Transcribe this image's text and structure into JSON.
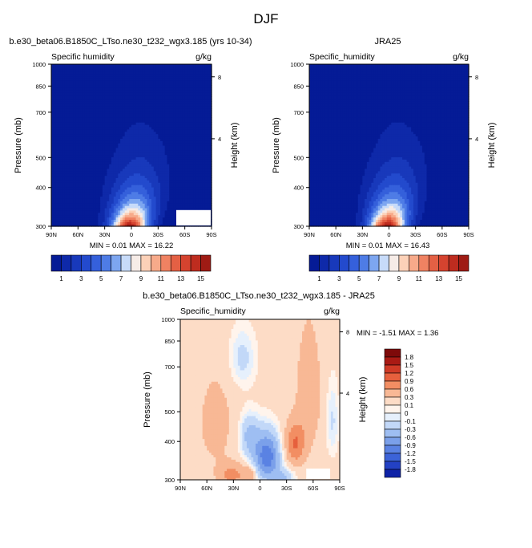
{
  "page_title": "DJF",
  "colors": {
    "positive_ramp": [
      "#FFF4EC",
      "#FDDCC6",
      "#F8B895",
      "#F28E63",
      "#E6603D",
      "#CF3A26",
      "#A91A14",
      "#7E0A0A"
    ],
    "negative_ramp": [
      "#E6F0FC",
      "#C2D8F8",
      "#9EBEF2",
      "#7BA0EA",
      "#5A82E3",
      "#3C63D8",
      "#2341C4",
      "#0E22A7",
      "#00108C"
    ],
    "missing": "#FFFFFF"
  },
  "chart_data": [
    {
      "type": "heatmap",
      "panel": "model",
      "title": "b.e30_beta06.B1850C_LTso.ne30_t232_wgx3.185 (yrs 10-34)",
      "variable_label": "Specific humidity",
      "units": "g/kg",
      "xlabel": "",
      "ylabel": "Pressure (mb)",
      "right_ylabel": "Height (km)",
      "x_ticks": [
        "90N",
        "60N",
        "30N",
        "0",
        "30S",
        "60S",
        "90S"
      ],
      "y_ticks": [
        1000,
        850,
        700,
        500,
        400,
        300
      ],
      "height_ticks": [
        4,
        8
      ],
      "xlim": [
        90,
        -90
      ],
      "ylim": [
        1000,
        300
      ],
      "stats": "MIN =  0.01  MAX =  16.22",
      "max_value": 16.22,
      "contour_levels": [
        1,
        2,
        3,
        4,
        5,
        6,
        7,
        8,
        9,
        10,
        11,
        12,
        13,
        14,
        15
      ],
      "colorbar_labels": [
        "1",
        "3",
        "5",
        "7",
        "9",
        "11",
        "13",
        "15"
      ]
    },
    {
      "type": "heatmap",
      "panel": "reanalysis",
      "title": "JRA25",
      "variable_label": "Specific_humidity",
      "units": "g/kg",
      "xlabel": "",
      "ylabel": "Pressure (mb)",
      "right_ylabel": "Height (km)",
      "x_ticks": [
        "90N",
        "60N",
        "30N",
        "0",
        "30S",
        "60S",
        "90S"
      ],
      "y_ticks": [
        1000,
        850,
        700,
        500,
        400,
        300
      ],
      "height_ticks": [
        4,
        8
      ],
      "xlim": [
        90,
        -90
      ],
      "ylim": [
        1000,
        300
      ],
      "stats": "MIN =  0.01  MAX =  16.43",
      "max_value": 16.43,
      "contour_levels": [
        1,
        2,
        3,
        4,
        5,
        6,
        7,
        8,
        9,
        10,
        11,
        12,
        13,
        14,
        15
      ],
      "colorbar_labels": [
        "1",
        "3",
        "5",
        "7",
        "9",
        "11",
        "13",
        "15"
      ]
    },
    {
      "type": "heatmap",
      "panel": "difference",
      "title": "b.e30_beta06.B1850C_LTso.ne30_t232_wgx3.185 - JRA25",
      "variable_label": "Specific_humidity",
      "units": "g/kg",
      "xlabel": "",
      "ylabel": "Pressure (mb)",
      "right_ylabel": "Height (km)",
      "x_ticks": [
        "90N",
        "60N",
        "30N",
        "0",
        "30S",
        "60S",
        "90S"
      ],
      "y_ticks": [
        1000,
        850,
        700,
        500,
        400,
        300
      ],
      "height_ticks": [
        4,
        8
      ],
      "xlim": [
        90,
        -90
      ],
      "ylim": [
        1000,
        300
      ],
      "stats": "MIN = -1.51  MAX =   1.36",
      "min_value": -1.51,
      "max_value": 1.36,
      "colorbar_labels": [
        "1.8",
        "1.5",
        "1.2",
        "0.9",
        "0.6",
        "0.3",
        "0.1",
        "0",
        "-0.1",
        "-0.3",
        "-0.6",
        "-0.9",
        "-1.2",
        "-1.5",
        "-1.8"
      ]
    }
  ]
}
